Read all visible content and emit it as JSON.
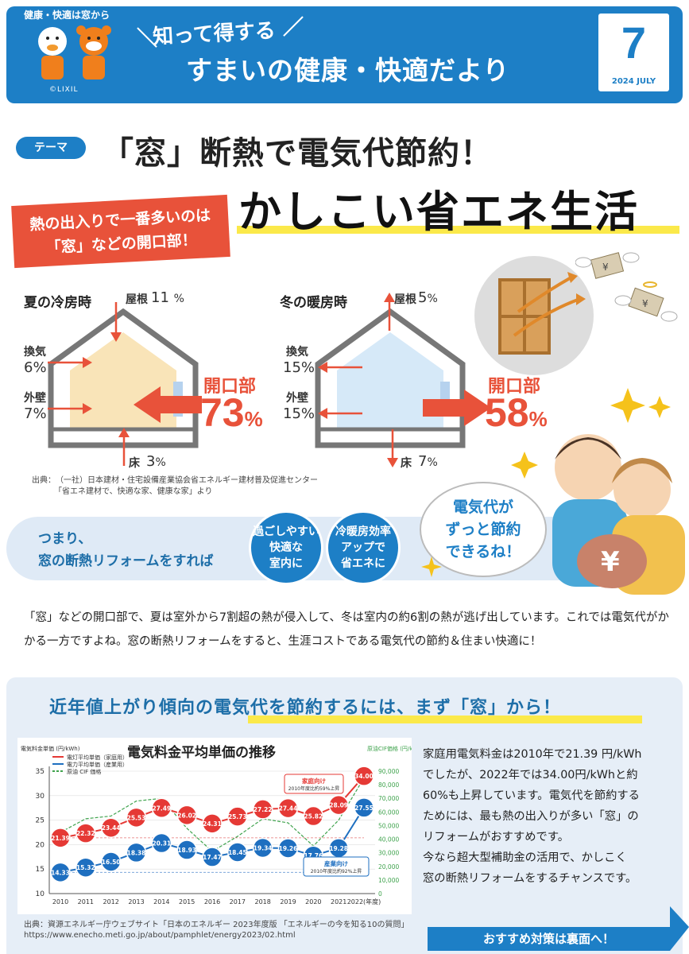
{
  "header": {
    "small_tag": "健康・快適は窓から",
    "copyright": "©LIXIL",
    "line1": "知って得する",
    "line2": "すまいの健康・快適だより",
    "month": "7",
    "date": "2024 JULY"
  },
  "theme": {
    "badge": "テーマ",
    "title": "「窓」断熱で電気代節約！",
    "main_title": "かしこい省エネ生活"
  },
  "callout": {
    "line1": "熱の出入りで一番多いのは",
    "line2": "「窓」などの開口部！"
  },
  "summer": {
    "title": "夏の冷房時",
    "roof_label": "屋根",
    "roof_pct": "11",
    "vent_label": "換気",
    "vent_pct": "6%",
    "wall_label": "外壁",
    "wall_pct": "7%",
    "floor_label": "床",
    "floor_pct": "3",
    "opening_label": "開口部",
    "opening_pct": "73"
  },
  "winter": {
    "title": "冬の暖房時",
    "roof_label": "屋根",
    "roof_pct": "5",
    "vent_label": "換気",
    "vent_pct": "15%",
    "wall_label": "外壁",
    "wall_pct": "15%",
    "floor_label": "床",
    "floor_pct": "7",
    "opening_label": "開口部",
    "opening_pct": "58"
  },
  "percent_sign": "%",
  "source1": {
    "line1": "出典：　（一社）日本建材・住宅設備産業協会省エネルギー建材普及促進センター",
    "line2": "「省エネ建材で、快適な家、健康な家」より"
  },
  "band": {
    "line1": "つまり、",
    "line2": "窓の断熱リフォームをすれば",
    "circle1": [
      "過ごしやすい",
      "快適な",
      "室内に"
    ],
    "circle2": [
      "冷暖房効率",
      "アップで",
      "省エネに"
    ],
    "speech": [
      "電気代が",
      "ずっと節約",
      "できるね！"
    ]
  },
  "paragraph": "「窓」などの開口部で、夏は室外から7割超の熱が侵入して、冬は室内の約6割の熱が逃げ出しています。これでは電気代がかかる一方ですよね。窓の断熱リフォームをすると、生涯コストである電気代の節約＆住まい快適に！",
  "lower": {
    "title_pre": "近年値上がり傾向の",
    "title_hl": "電気代を節約するには、まず「窓」から！",
    "right_text": [
      "家庭用電気料金は2010年で21.39 円/kWh",
      "でしたが、2022年では34.00円/kWhと約",
      "60%も上昇しています。電気代を節約する",
      "ためには、最も熱の出入りが多い「窓」の",
      "リフォームがおすすめです。",
      "今なら超大型補助金の活用で、かしこく",
      "窓の断熱リフォームをするチャンスです。"
    ],
    "source2_line1": "出典：資源エネルギー庁ウェブサイト「日本のエネルギー 2023年度版 「エネルギーの今を知る10の質問」",
    "source2_line2": "https://www.enecho.meti.go.jp/about/pamphlet/energy2023/02.html",
    "cta": "おすすめ対策は裏面へ！"
  },
  "chart_data": {
    "type": "line",
    "title": "電気料金平均単価の推移",
    "ylabel_left": "電気料金単価 (円/kWh)",
    "ylabel_right": "原油CIF価格 (円/kl)",
    "x": [
      "2010",
      "2011",
      "2012",
      "2013",
      "2014",
      "2015",
      "2016",
      "2017",
      "2018",
      "2019",
      "2020",
      "2021",
      "2022(年度)"
    ],
    "ylim": [
      10,
      35
    ],
    "y_ticks": [
      10,
      15,
      20,
      25,
      30,
      35
    ],
    "y2lim": [
      0,
      90000
    ],
    "y2_ticks": [
      "0",
      "10,000",
      "20,000",
      "30,000",
      "40,000",
      "50,000",
      "60,000",
      "70,000",
      "80,000",
      "90,000"
    ],
    "legend": [
      "電灯平均単価（家庭用）",
      "電力平均単価（産業用）",
      "原油 CIF 価格"
    ],
    "series": [
      {
        "name": "電灯平均単価（家庭用）",
        "color": "#e53935",
        "values": [
          21.39,
          22.32,
          23.44,
          25.53,
          27.49,
          26.02,
          24.31,
          25.73,
          27.22,
          27.44,
          25.82,
          28.09,
          34.0
        ]
      },
      {
        "name": "電力平均単価（産業用）",
        "color": "#1e6fc0",
        "values": [
          14.33,
          15.32,
          16.5,
          18.38,
          20.31,
          18.93,
          17.47,
          18.45,
          19.34,
          19.26,
          17.76,
          19.28,
          27.55
        ]
      },
      {
        "name": "原油 CIF 価格",
        "color": "#3fa34d",
        "values": [
          45000,
          55000,
          57000,
          68000,
          70000,
          48000,
          31000,
          42000,
          55000,
          52000,
          35000,
          54000,
          85000
        ]
      }
    ],
    "annotations": [
      {
        "title": "家庭向け",
        "text": "2010年度比約59%上昇"
      },
      {
        "title": "産業向け",
        "text": "2010年度比約92%上昇"
      }
    ]
  },
  "colors": {
    "brand_blue": "#1d7fc6",
    "accent_red": "#e8523a",
    "highlight_yellow": "#fbe94a"
  }
}
